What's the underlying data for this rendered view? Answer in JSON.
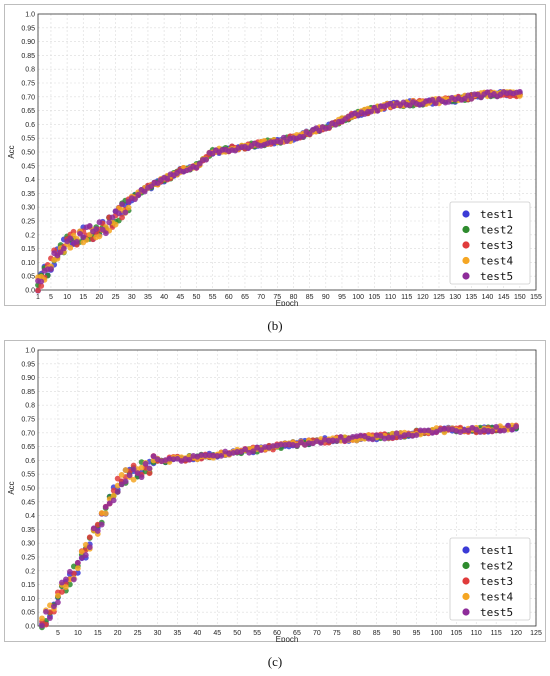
{
  "panels": [
    {
      "caption": "(b)",
      "chart_data": {
        "type": "scatter",
        "xlabel": "Epoch",
        "ylabel": "Acc",
        "xlim": [
          1,
          155
        ],
        "ylim": [
          0,
          1
        ],
        "x_ticks": [
          1,
          5,
          10,
          15,
          20,
          25,
          30,
          35,
          40,
          45,
          50,
          55,
          60,
          65,
          70,
          75,
          80,
          85,
          90,
          95,
          100,
          105,
          110,
          115,
          120,
          125,
          130,
          135,
          140,
          145,
          150,
          155
        ],
        "y_ticks": [
          "0.0",
          "0.05",
          "0.10",
          "0.15",
          "0.2",
          "0.25",
          "0.30",
          "0.35",
          "0.4",
          "0.45",
          "0.50",
          "0.55",
          "0.6",
          "0.65",
          "0.70",
          "0.75",
          "0.8",
          "0.85",
          "0.90",
          "0.95",
          "1.0"
        ],
        "grid": true,
        "legend": "bottom-right",
        "curve_x": [
          1,
          3,
          5,
          8,
          10,
          13,
          15,
          18,
          20,
          23,
          25,
          28,
          30,
          35,
          40,
          45,
          50,
          55,
          60,
          65,
          70,
          75,
          80,
          90,
          100,
          110,
          120,
          130,
          140,
          150
        ],
        "curve_y": [
          0.02,
          0.06,
          0.1,
          0.15,
          0.17,
          0.19,
          0.2,
          0.21,
          0.22,
          0.24,
          0.26,
          0.3,
          0.33,
          0.37,
          0.4,
          0.43,
          0.45,
          0.5,
          0.51,
          0.52,
          0.53,
          0.54,
          0.55,
          0.59,
          0.64,
          0.67,
          0.68,
          0.69,
          0.71,
          0.71
        ],
        "series": [
          {
            "name": "test1",
            "color": "#3b3bd6"
          },
          {
            "name": "test2",
            "color": "#2e8b2e"
          },
          {
            "name": "test3",
            "color": "#e03b3b"
          },
          {
            "name": "test4",
            "color": "#f5a623"
          },
          {
            "name": "test5",
            "color": "#8e2c9a"
          }
        ],
        "x_max": 150
      }
    },
    {
      "caption": "(c)",
      "chart_data": {
        "type": "scatter",
        "xlabel": "Epoch",
        "ylabel": "Acc",
        "xlim": [
          0,
          125
        ],
        "ylim": [
          0,
          1
        ],
        "x_ticks": [
          5,
          10,
          15,
          20,
          25,
          30,
          35,
          40,
          45,
          50,
          55,
          60,
          65,
          70,
          75,
          80,
          85,
          90,
          95,
          100,
          105,
          110,
          115,
          120,
          125
        ],
        "y_ticks": [
          "0.0",
          "0.05",
          "0.10",
          "0.15",
          "0.2",
          "0.25",
          "0.30",
          "0.35",
          "0.4",
          "0.45",
          "0.50",
          "0.55",
          "0.6",
          "0.65",
          "0.70",
          "0.75",
          "0.8",
          "0.85",
          "0.90",
          "0.95",
          "1.0"
        ],
        "grid": true,
        "legend": "bottom-right",
        "curve_x": [
          1,
          3,
          5,
          8,
          10,
          13,
          15,
          18,
          20,
          22,
          25,
          28,
          30,
          35,
          40,
          45,
          50,
          55,
          60,
          65,
          70,
          80,
          90,
          100,
          110,
          120
        ],
        "curve_y": [
          0.01,
          0.05,
          0.11,
          0.17,
          0.22,
          0.3,
          0.36,
          0.45,
          0.51,
          0.54,
          0.56,
          0.58,
          0.6,
          0.605,
          0.61,
          0.62,
          0.63,
          0.64,
          0.65,
          0.66,
          0.67,
          0.68,
          0.69,
          0.71,
          0.71,
          0.72
        ],
        "series": [
          {
            "name": "test1",
            "color": "#3b3bd6"
          },
          {
            "name": "test2",
            "color": "#2e8b2e"
          },
          {
            "name": "test3",
            "color": "#e03b3b"
          },
          {
            "name": "test4",
            "color": "#f5a623"
          },
          {
            "name": "test5",
            "color": "#8e2c9a"
          }
        ],
        "x_max": 120
      }
    }
  ]
}
